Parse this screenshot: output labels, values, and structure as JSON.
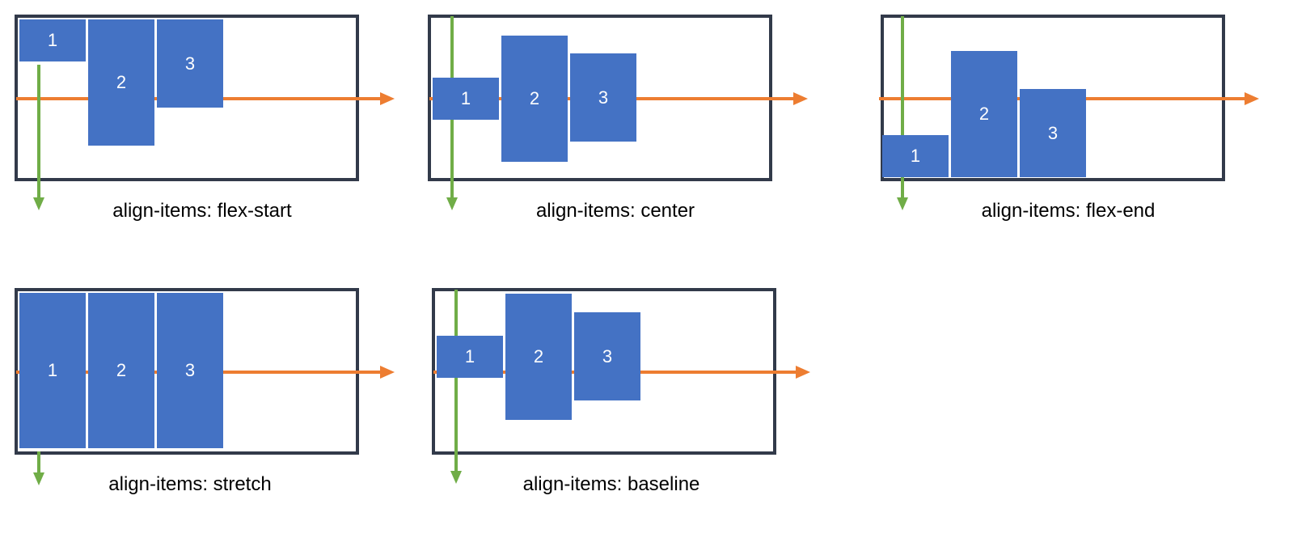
{
  "colors": {
    "main_axis": "#ed7d31",
    "cross_axis": "#70ad47",
    "item": "#4472c4",
    "border": "#323a4a"
  },
  "panels": [
    {
      "caption": "align-items: flex-start",
      "items": [
        "1",
        "2",
        "3"
      ]
    },
    {
      "caption": "align-items: center",
      "items": [
        "1",
        "2",
        "3"
      ]
    },
    {
      "caption": "align-items: flex-end",
      "items": [
        "1",
        "2",
        "3"
      ]
    },
    {
      "caption": "align-items: stretch",
      "items": [
        "1",
        "2",
        "3"
      ]
    },
    {
      "caption": "align-items: baseline",
      "items": [
        "1",
        "2",
        "3"
      ]
    }
  ]
}
